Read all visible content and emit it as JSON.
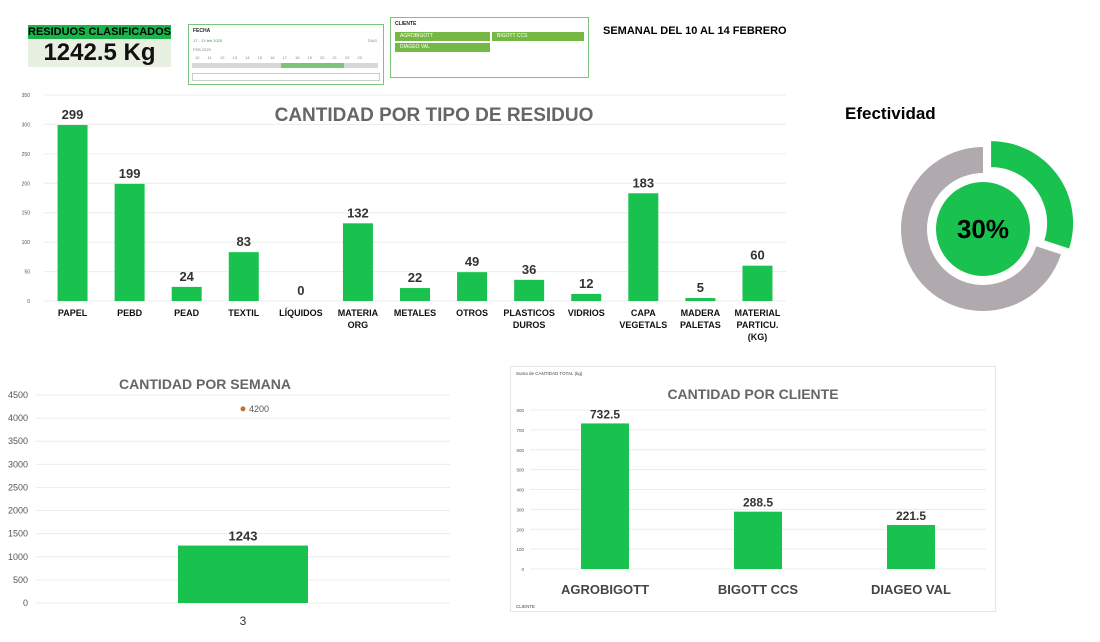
{
  "kpi": {
    "title": "RESIDUOS CLASIFICADOS",
    "value": "1242.5 Kg"
  },
  "fecha_slicer": {
    "header": "FECHA",
    "range": "17 - 13 feb 2025",
    "level": "DÍAS",
    "month": "FEB 2025",
    "days": [
      "10",
      "11",
      "12",
      "13",
      "14",
      "15",
      "16",
      "17",
      "18",
      "19",
      "20",
      "21",
      "22",
      "23"
    ]
  },
  "cliente_slicer": {
    "header": "CLIENTE",
    "items": [
      "AGROBIGOTT",
      "BIGOTT CCS",
      "DIAGEO VAL"
    ]
  },
  "period_label": "SEMANAL DEL 10 AL 14 FEBRERO",
  "colors": {
    "green": "#19c24f",
    "gray": "#b0aaae",
    "header_green": "#19b54a"
  },
  "chart_data": [
    {
      "type": "bar",
      "title": "CANTIDAD POR TIPO DE RESIDUO",
      "categories": [
        [
          "PAPEL"
        ],
        [
          "PEBD"
        ],
        [
          "PEAD"
        ],
        [
          "TEXTIL"
        ],
        [
          "LÍQUIDOS"
        ],
        [
          "MATERIA",
          "ORG"
        ],
        [
          "METALES"
        ],
        [
          "OTROS"
        ],
        [
          "PLASTICOS",
          "DUROS"
        ],
        [
          "VIDRIOS"
        ],
        [
          "CAPA",
          "VEGETALS"
        ],
        [
          "MADERA",
          "PALETAS"
        ],
        [
          "MATERIAL",
          "PARTICU.",
          "(KG)"
        ]
      ],
      "values": [
        299,
        199,
        24,
        83,
        0,
        132,
        22,
        49,
        36,
        12,
        183,
        5,
        60
      ],
      "yticks": [
        0,
        50,
        100,
        150,
        200,
        250,
        300,
        350
      ],
      "ylim": [
        0,
        350
      ],
      "grid": true
    },
    {
      "type": "pie",
      "title": "Efectividad",
      "center_label": "30%",
      "values": [
        30,
        70
      ]
    },
    {
      "type": "bar",
      "title": "CANTIDAD POR SEMANA",
      "categories": [
        "3"
      ],
      "values": [
        1243
      ],
      "outlier": {
        "label": "4200",
        "value": 4200
      },
      "yticks": [
        0,
        500,
        1000,
        1500,
        2000,
        2500,
        3000,
        3500,
        4000,
        4500
      ],
      "ylim": [
        0,
        4500
      ],
      "grid": true
    },
    {
      "type": "bar",
      "title": "CANTIDAD POR  CLIENTE",
      "field_label": "Suma de CANTIDAD TOTAL (kg)",
      "axis_field": "CLIENTE",
      "categories": [
        "AGROBIGOTT",
        "BIGOTT CCS",
        "DIAGEO VAL"
      ],
      "values": [
        732.5,
        288.5,
        221.5
      ],
      "yticks": [
        0,
        100,
        200,
        300,
        400,
        500,
        600,
        700,
        800
      ],
      "ylim": [
        0,
        800
      ],
      "grid": true
    }
  ]
}
